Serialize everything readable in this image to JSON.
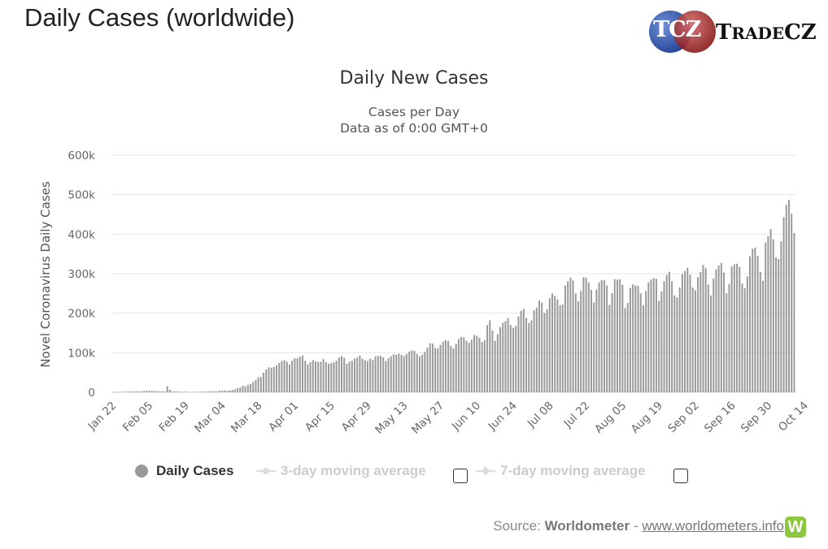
{
  "header": {
    "title": "Daily Cases (worldwide)",
    "logo_mark": "TCZ",
    "logo_brand_big_t": "T",
    "logo_brand_rest": "RADE",
    "logo_brand_cz": "CZ"
  },
  "chart_data": {
    "type": "bar",
    "title": "Daily New Cases",
    "subtitle": "Cases per Day",
    "subtitle2": "Data as of 0:00 GMT+0",
    "ylabel": "Novel Coronavirus Daily Cases",
    "xlabel": "",
    "ylim": [
      0,
      600000
    ],
    "y_ticks": [
      0,
      100000,
      200000,
      300000,
      400000,
      500000,
      600000
    ],
    "y_tick_labels": [
      "0",
      "100k",
      "200k",
      "300k",
      "400k",
      "500k",
      "600k"
    ],
    "x_tick_labels": [
      "Jan 22",
      "Feb 05",
      "Feb 19",
      "Mar 04",
      "Mar 18",
      "Apr 01",
      "Apr 15",
      "Apr 29",
      "May 13",
      "May 27",
      "Jun 10",
      "Jun 24",
      "Jul 08",
      "Jul 22",
      "Aug 05",
      "Aug 19",
      "Sep 02",
      "Sep 16",
      "Sep 30",
      "Oct 14"
    ],
    "x_tick_every_days": 14,
    "grid": true,
    "bar_color": "#999999",
    "series": [
      {
        "name": "Daily Cases",
        "values": [
          600,
          300,
          700,
          800,
          1300,
          1800,
          2000,
          1700,
          2100,
          2600,
          2100,
          2700,
          3100,
          3900,
          3700,
          3200,
          3400,
          2700,
          2000,
          2500,
          2100,
          15100,
          6500,
          2100,
          2000,
          1900,
          1800,
          900,
          1600,
          500,
          900,
          600,
          1000,
          700,
          1300,
          1600,
          2000,
          2200,
          2600,
          2800,
          2300,
          3600,
          4200,
          4500,
          4000,
          4600,
          5900,
          7600,
          10500,
          11800,
          16300,
          15200,
          19000,
          20800,
          26000,
          31000,
          38000,
          38500,
          49500,
          58000,
          63000,
          62000,
          64000,
          68000,
          74000,
          79000,
          81000,
          77000,
          70000,
          80000,
          86000,
          86000,
          90000,
          93000,
          80000,
          71000,
          76000,
          81000,
          78000,
          77000,
          77000,
          84000,
          76000,
          72000,
          74000,
          76000,
          80000,
          88000,
          91000,
          87000,
          72000,
          77000,
          80000,
          85000,
          88000,
          93000,
          85000,
          81000,
          79000,
          85000,
          82000,
          91000,
          92000,
          92000,
          88000,
          79000,
          86000,
          91000,
          96000,
          95000,
          98000,
          95000,
          92000,
          97000,
          103000,
          106000,
          105000,
          97000,
          91000,
          95000,
          102000,
          113000,
          124000,
          123000,
          112000,
          111000,
          120000,
          128000,
          132000,
          130000,
          117000,
          111000,
          122000,
          135000,
          140000,
          139000,
          130000,
          125000,
          133000,
          145000,
          143000,
          138000,
          127000,
          132000,
          170000,
          182000,
          156000,
          130000,
          147000,
          165000,
          176000,
          180000,
          188000,
          170000,
          163000,
          168000,
          192000,
          206000,
          211000,
          188000,
          175000,
          182000,
          207000,
          214000,
          232000,
          227000,
          201000,
          210000,
          238000,
          250000,
          244000,
          235000,
          220000,
          222000,
          270000,
          281000,
          290000,
          283000,
          250000,
          230000,
          256000,
          291000,
          290000,
          278000,
          259000,
          227000,
          260000,
          278000,
          284000,
          283000,
          270000,
          221000,
          251000,
          286000,
          285000,
          286000,
          272000,
          213000,
          226000,
          264000,
          273000,
          270000,
          269000,
          250000,
          220000,
          256000,
          278000,
          285000,
          289000,
          287000,
          231000,
          255000,
          281000,
          297000,
          305000,
          281000,
          245000,
          240000,
          265000,
          299000,
          307000,
          315000,
          297000,
          265000,
          258000,
          291000,
          304000,
          322000,
          314000,
          272000,
          245000,
          288000,
          311000,
          321000,
          327000,
          303000,
          250000,
          274000,
          318000,
          324000,
          325000,
          317000,
          275000,
          263000,
          293000,
          344000,
          363000,
          366000,
          345000,
          304000,
          282000,
          379000,
          395000,
          413000,
          387000,
          341000,
          337000,
          382000,
          443000,
          474000,
          487000,
          452000,
          403000
        ]
      },
      {
        "name": "3-day moving average",
        "visible": false
      },
      {
        "name": "7-day moving average",
        "visible": false
      }
    ]
  },
  "legend": {
    "daily": "Daily Cases",
    "ma3": "3-day moving average",
    "ma7": "7-day moving average"
  },
  "source": {
    "prefix": "Source: ",
    "name": "Worldometer",
    "sep": " - ",
    "link": "www.worldometers.info",
    "icon_letter": "W"
  }
}
